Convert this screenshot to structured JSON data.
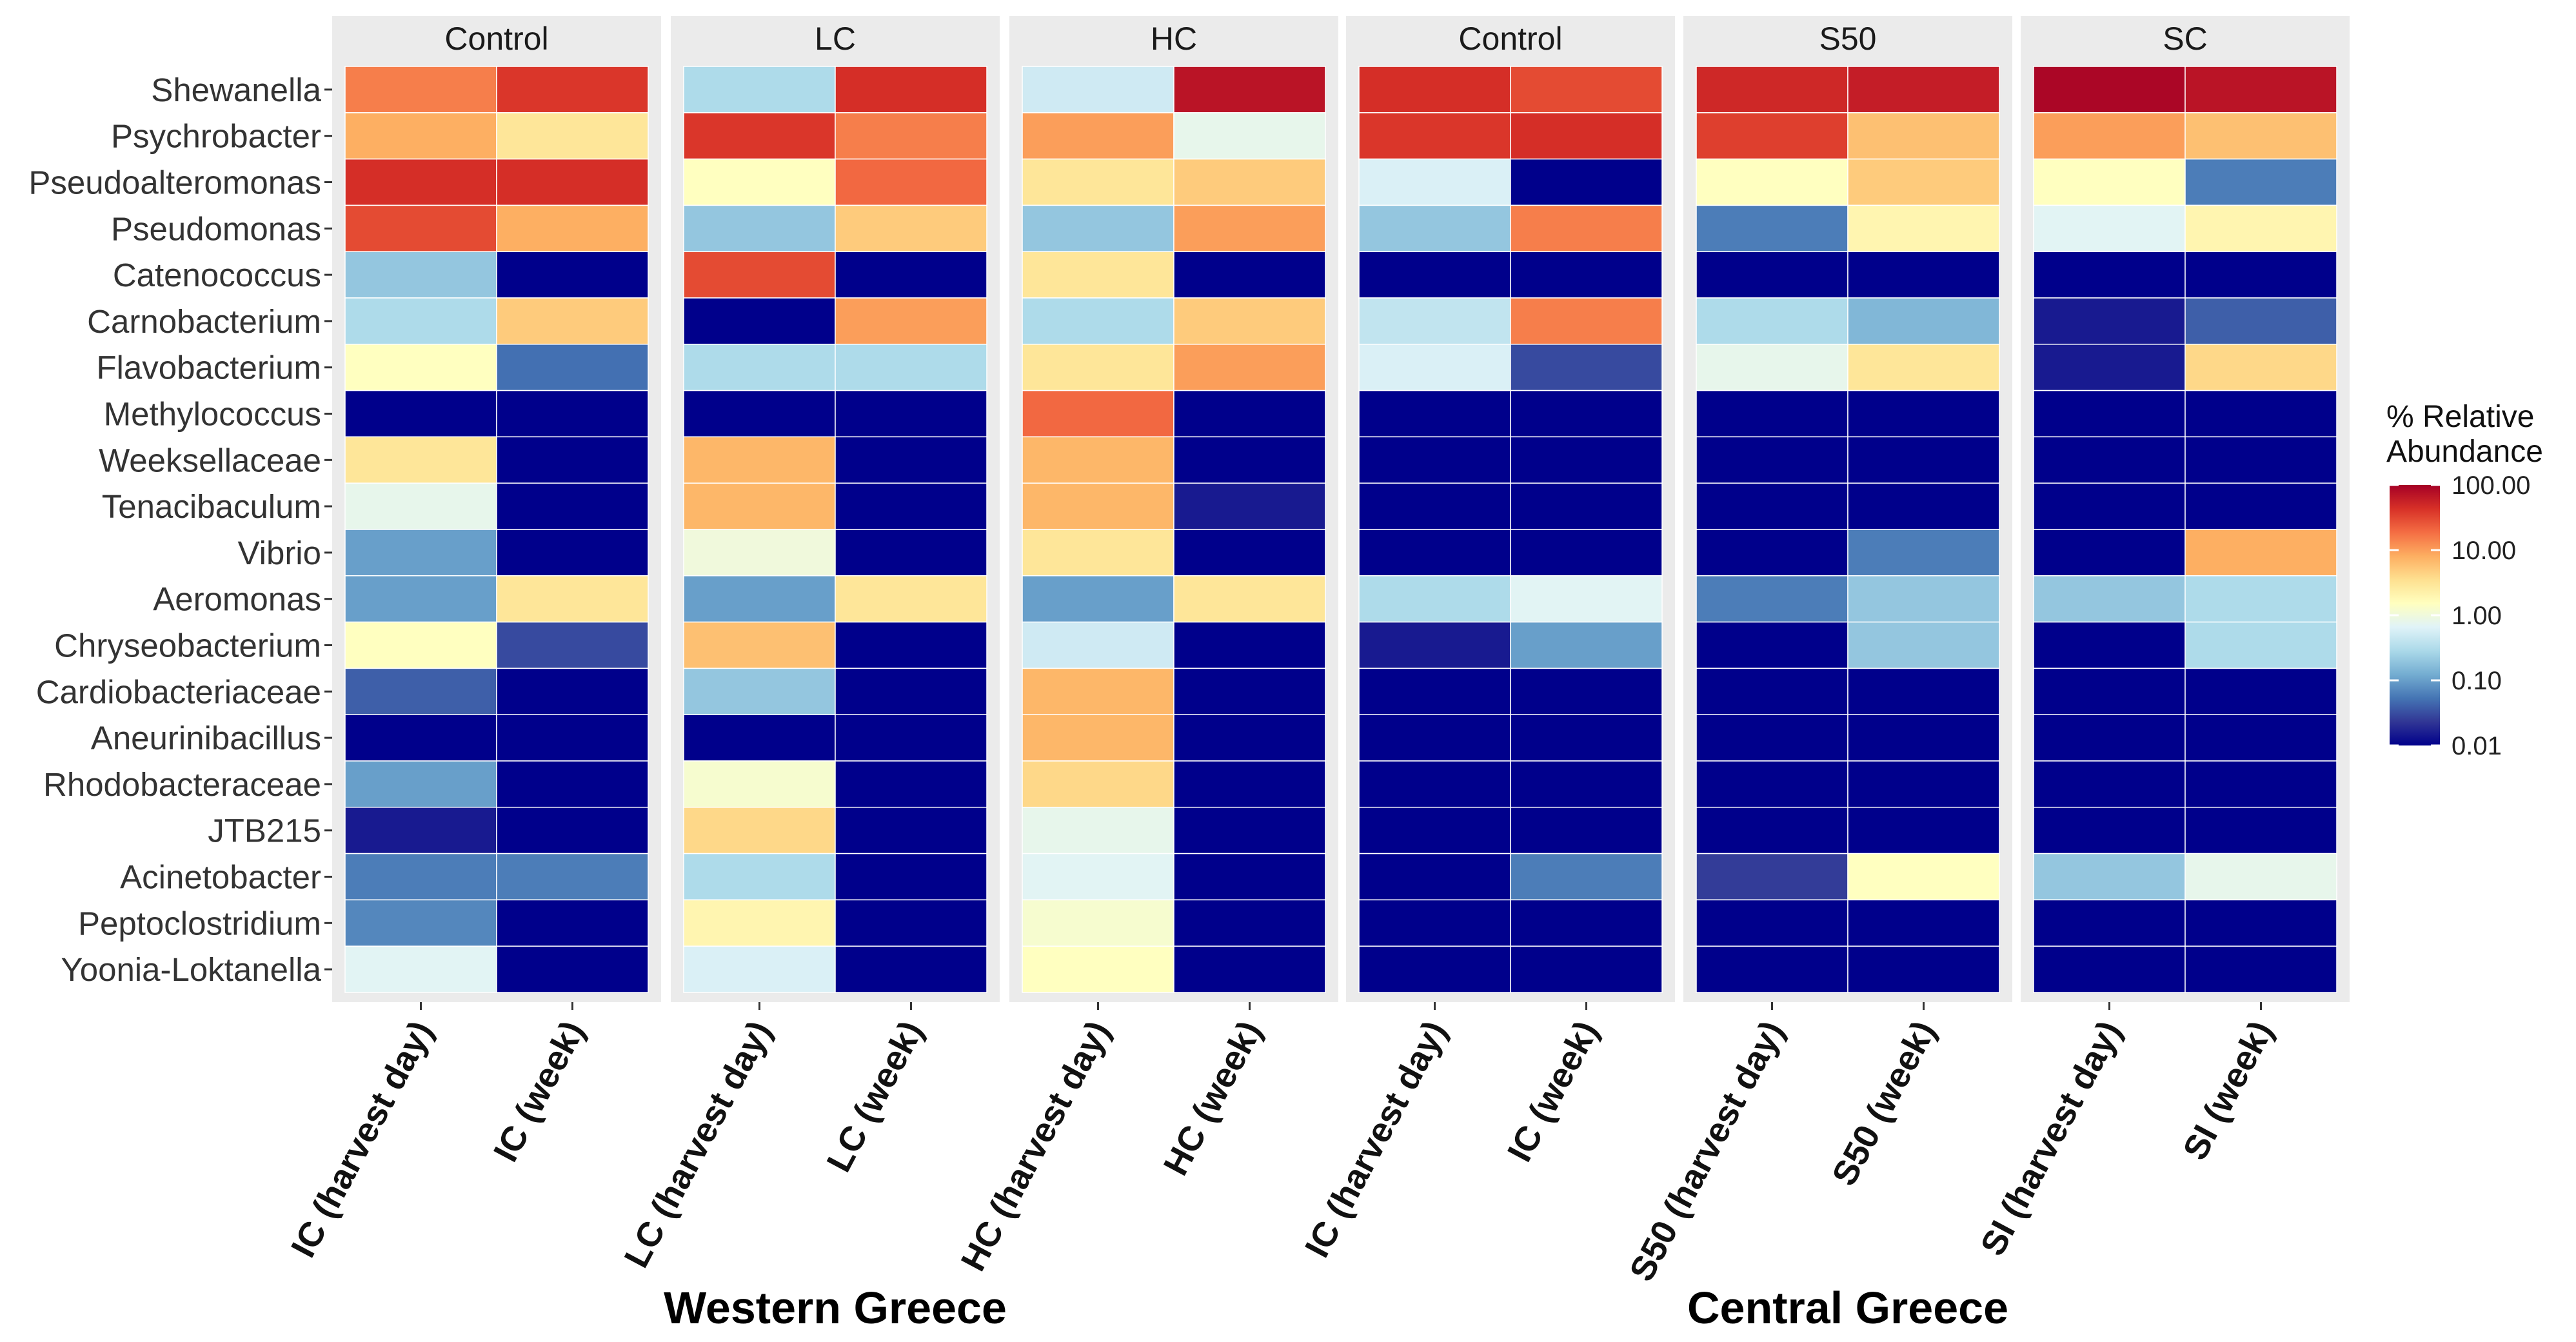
{
  "chart_data": {
    "type": "heatmap",
    "title": "",
    "value_unit": "% Relative Abundance",
    "scale": "log10",
    "rows": [
      "Shewanella",
      "Psychrobacter",
      "Pseudoalteromonas",
      "Pseudomonas",
      "Catenococcus",
      "Carnobacterium",
      "Flavobacterium",
      "Methylococcus",
      "Weeksellaceae",
      "Tenacibaculum",
      "Vibrio",
      "Aeromonas",
      "Chryseobacterium",
      "Cardiobacteriaceae",
      "Aneurinibacillus",
      "Rhodobacteraceae",
      "JTB215",
      "Acinetobacter",
      "Peptoclostridium",
      "Yoonia-Loktanella"
    ],
    "panels": [
      {
        "strip": "Control",
        "region": "Western Greece",
        "columns": [
          "IC (harvest day)",
          "IC (week)"
        ],
        "values": [
          [
            15,
            40
          ],
          [
            8,
            3
          ],
          [
            45,
            45
          ],
          [
            30,
            8
          ],
          [
            0.2,
            0.01
          ],
          [
            0.3,
            5
          ],
          [
            1.5,
            0.05
          ],
          [
            0.01,
            0.01
          ],
          [
            3,
            0.01
          ],
          [
            0.8,
            0.01
          ],
          [
            0.1,
            0.01
          ],
          [
            0.1,
            3
          ],
          [
            1.5,
            0.03
          ],
          [
            0.04,
            0.01
          ],
          [
            0.01,
            0.01
          ],
          [
            0.1,
            0.01
          ],
          [
            0.015,
            0.01
          ],
          [
            0.06,
            0.06
          ],
          [
            0.07,
            0.01
          ],
          [
            0.7,
            0.01
          ]
        ]
      },
      {
        "strip": "LC",
        "region": "Western Greece",
        "columns": [
          "LC (harvest day)",
          "LC (week)"
        ],
        "values": [
          [
            0.3,
            45
          ],
          [
            40,
            15
          ],
          [
            1.5,
            20
          ],
          [
            0.2,
            5
          ],
          [
            30,
            0.01
          ],
          [
            0.01,
            10
          ],
          [
            0.3,
            0.3
          ],
          [
            0.01,
            0.01
          ],
          [
            7,
            0.01
          ],
          [
            7,
            0.01
          ],
          [
            1,
            0.01
          ],
          [
            0.1,
            3
          ],
          [
            6,
            0.01
          ],
          [
            0.2,
            0.01
          ],
          [
            0.01,
            0.01
          ],
          [
            1.2,
            0.01
          ],
          [
            4,
            0.01
          ],
          [
            0.3,
            0.01
          ],
          [
            2,
            0.01
          ],
          [
            0.6,
            0.01
          ]
        ]
      },
      {
        "strip": "HC",
        "region": "Western Greece",
        "columns": [
          "HC (harvest day)",
          "HC (week)"
        ],
        "values": [
          [
            0.5,
            70
          ],
          [
            10,
            0.8
          ],
          [
            3,
            5
          ],
          [
            0.2,
            10
          ],
          [
            3,
            0.01
          ],
          [
            0.3,
            5
          ],
          [
            3,
            10
          ],
          [
            20,
            0.01
          ],
          [
            7,
            0.01
          ],
          [
            7,
            0.015
          ],
          [
            3,
            0.01
          ],
          [
            0.1,
            3
          ],
          [
            0.5,
            0.01
          ],
          [
            7,
            0.01
          ],
          [
            7,
            0.01
          ],
          [
            4,
            0.01
          ],
          [
            0.8,
            0.01
          ],
          [
            0.7,
            0.01
          ],
          [
            1.2,
            0.01
          ],
          [
            1.5,
            0.01
          ]
        ]
      },
      {
        "strip": "Control",
        "region": "Central Greece",
        "columns": [
          "IC (harvest day)",
          "IC (week)"
        ],
        "values": [
          [
            45,
            30
          ],
          [
            40,
            45
          ],
          [
            0.6,
            0.01
          ],
          [
            0.2,
            15
          ],
          [
            0.01,
            0.01
          ],
          [
            0.4,
            15
          ],
          [
            0.6,
            0.03
          ],
          [
            0.01,
            0.01
          ],
          [
            0.01,
            0.01
          ],
          [
            0.01,
            0.01
          ],
          [
            0.01,
            0.01
          ],
          [
            0.3,
            0.7
          ],
          [
            0.015,
            0.1
          ],
          [
            0.01,
            0.01
          ],
          [
            0.01,
            0.01
          ],
          [
            0.01,
            0.01
          ],
          [
            0.01,
            0.01
          ],
          [
            0.01,
            0.06
          ],
          [
            0.01,
            0.01
          ],
          [
            0.01,
            0.01
          ]
        ]
      },
      {
        "strip": "S50",
        "region": "Central Greece",
        "columns": [
          "S50 (harvest day)",
          "S50 (week)"
        ],
        "values": [
          [
            50,
            60
          ],
          [
            35,
            6
          ],
          [
            1.5,
            5
          ],
          [
            0.06,
            2
          ],
          [
            0.01,
            0.01
          ],
          [
            0.3,
            0.15
          ],
          [
            0.8,
            3
          ],
          [
            0.01,
            0.01
          ],
          [
            0.01,
            0.01
          ],
          [
            0.01,
            0.01
          ],
          [
            0.01,
            0.06
          ],
          [
            0.06,
            0.2
          ],
          [
            0.01,
            0.2
          ],
          [
            0.01,
            0.01
          ],
          [
            0.01,
            0.01
          ],
          [
            0.01,
            0.01
          ],
          [
            0.01,
            0.01
          ],
          [
            0.025,
            1.5
          ],
          [
            0.01,
            0.01
          ],
          [
            0.01,
            0.01
          ]
        ]
      },
      {
        "strip": "SC",
        "region": "Central Greece",
        "columns": [
          "SI (harvest day)",
          "SI (week)"
        ],
        "values": [
          [
            90,
            70
          ],
          [
            10,
            6
          ],
          [
            1.5,
            0.06
          ],
          [
            0.7,
            2
          ],
          [
            0.01,
            0.01
          ],
          [
            0.015,
            0.04
          ],
          [
            0.015,
            4
          ],
          [
            0.01,
            0.01
          ],
          [
            0.01,
            0.01
          ],
          [
            0.01,
            0.01
          ],
          [
            0.01,
            8
          ],
          [
            0.2,
            0.3
          ],
          [
            0.01,
            0.3
          ],
          [
            0.01,
            0.01
          ],
          [
            0.01,
            0.01
          ],
          [
            0.01,
            0.01
          ],
          [
            0.01,
            0.01
          ],
          [
            0.2,
            0.8
          ],
          [
            0.01,
            0.01
          ],
          [
            0.01,
            0.01
          ]
        ]
      }
    ],
    "region_labels": [
      "Western Greece",
      "Central Greece"
    ],
    "legend": {
      "title_lines": [
        "% Relative",
        "Abundance"
      ],
      "ticks": [
        100,
        10,
        1,
        0.1,
        0.01
      ],
      "tick_labels": [
        "100.00",
        "10.00",
        "1.00",
        "0.10",
        "0.01"
      ],
      "colors": [
        "#a50026",
        "#d73027",
        "#f46d43",
        "#fdae61",
        "#fee090",
        "#ffffbf",
        "#e0f3f8",
        "#abd9e9",
        "#74add1",
        "#4575b4",
        "#313695",
        "#00008b"
      ]
    },
    "strip_background": "#ebebeb",
    "panel_background": "#ebebeb"
  }
}
